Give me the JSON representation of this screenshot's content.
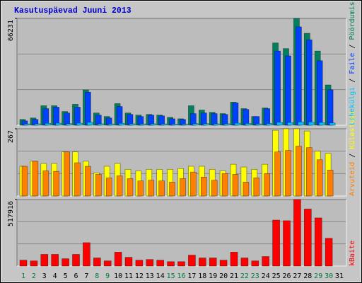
{
  "title": "Kasutuspäevad Juuni 2013",
  "legend_separator": " / ",
  "chart_data": [
    {
      "type": "bar",
      "ylim": [
        0,
        66231
      ],
      "yticks": [
        66231
      ],
      "series": [
        {
          "name": "Pöördumisi",
          "color": "#00805c",
          "values": [
            3600,
            4500,
            12100,
            12100,
            8500,
            13000,
            21900,
            7600,
            5400,
            13400,
            7600,
            6300,
            6700,
            6300,
            4900,
            4000,
            12100,
            9400,
            8000,
            7200,
            14300,
            10300,
            5400,
            10700,
            51000,
            47500,
            66231,
            57000,
            46000,
            25000,
            0
          ]
        },
        {
          "name": "Faile",
          "color": "#0040ff",
          "values": [
            2700,
            3600,
            10300,
            11200,
            7600,
            11200,
            20500,
            6300,
            4500,
            11600,
            6700,
            5400,
            6300,
            5800,
            4000,
            3600,
            7200,
            7600,
            7200,
            6700,
            13900,
            9800,
            5400,
            10300,
            46000,
            43000,
            61000,
            53000,
            40000,
            22000,
            0
          ]
        },
        {
          "name": "Lehekülgi",
          "color": "#00c0ff",
          "values": [
            800,
            900,
            1200,
            1300,
            1000,
            1300,
            1800,
            900,
            800,
            1200,
            900,
            800,
            900,
            800,
            700,
            700,
            1000,
            1000,
            900,
            900,
            1300,
            1100,
            800,
            1100,
            1800,
            1700,
            2000,
            1900,
            1700,
            1400,
            0
          ]
        }
      ]
    },
    {
      "type": "bar",
      "ylim": [
        0,
        267
      ],
      "yticks": [
        267
      ],
      "series": [
        {
          "name": "Külastusi",
          "color": "#ffff00",
          "values": [
            118,
            138,
            129,
            129,
            175,
            175,
            138,
            92,
            118,
            129,
            106,
            100,
            106,
            106,
            106,
            109,
            118,
            118,
            106,
            100,
            126,
            115,
            106,
            126,
            261,
            267,
            267,
            258,
            178,
            169,
            0
          ]
        },
        {
          "name": "Arvuteid",
          "color": "#ff8000",
          "values": [
            118,
            138,
            100,
            98,
            175,
            132,
            118,
            86,
            72,
            80,
            69,
            60,
            63,
            60,
            55,
            69,
            95,
            75,
            63,
            89,
            86,
            55,
            72,
            89,
            175,
            181,
            198,
            192,
            144,
            103,
            0
          ]
        }
      ]
    },
    {
      "type": "bar",
      "ylim": [
        0,
        517916
      ],
      "yticks": [
        517916
      ],
      "categories": [
        "1",
        "2",
        "3",
        "4",
        "5",
        "6",
        "7",
        "8",
        "9",
        "10",
        "11",
        "12",
        "13",
        "14",
        "15",
        "16",
        "17",
        "18",
        "19",
        "20",
        "21",
        "22",
        "23",
        "24",
        "25",
        "26",
        "27",
        "28",
        "29",
        "30",
        "31"
      ],
      "category_colors": [
        "#008040",
        "#008040",
        "#000000",
        "#000000",
        "#000000",
        "#000000",
        "#000000",
        "#008040",
        "#008040",
        "#000000",
        "#000000",
        "#000000",
        "#000000",
        "#000000",
        "#008040",
        "#008040",
        "#000000",
        "#000000",
        "#000000",
        "#000000",
        "#000000",
        "#008040",
        "#008040",
        "#000000",
        "#000000",
        "#000000",
        "#000000",
        "#000000",
        "#008040",
        "#008040",
        "#000000"
      ],
      "series": [
        {
          "name": "kBaite",
          "color": "#ff0000",
          "values": [
            45500,
            40000,
            91000,
            91000,
            57000,
            91000,
            182000,
            63000,
            40000,
            108000,
            68000,
            45500,
            51000,
            45500,
            34000,
            34000,
            85000,
            63000,
            63000,
            45500,
            108000,
            63000,
            40000,
            74000,
            358000,
            353000,
            517916,
            444000,
            375000,
            216000,
            0
          ]
        }
      ]
    }
  ]
}
